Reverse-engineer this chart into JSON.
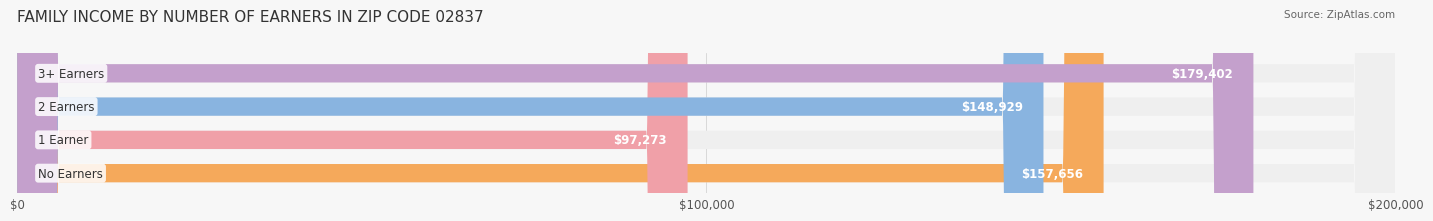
{
  "title": "FAMILY INCOME BY NUMBER OF EARNERS IN ZIP CODE 02837",
  "source": "Source: ZipAtlas.com",
  "categories": [
    "No Earners",
    "1 Earner",
    "2 Earners",
    "3+ Earners"
  ],
  "values": [
    157656,
    97273,
    148929,
    179402
  ],
  "labels": [
    "$157,656",
    "$97,273",
    "$148,929",
    "$179,402"
  ],
  "bar_colors": [
    "#F5A95B",
    "#F0A0A8",
    "#89B4E0",
    "#C4A0CC"
  ],
  "bar_track_color": "#EFEFEF",
  "xlim": [
    0,
    200000
  ],
  "xticks": [
    0,
    100000,
    200000
  ],
  "xticklabels": [
    "$0",
    "$100,000",
    "$200,000"
  ],
  "background_color": "#F7F7F7",
  "title_fontsize": 11,
  "label_fontsize": 8.5,
  "bar_height": 0.55,
  "label_color_inside": "#FFFFFF",
  "label_color_outside": "#555555"
}
